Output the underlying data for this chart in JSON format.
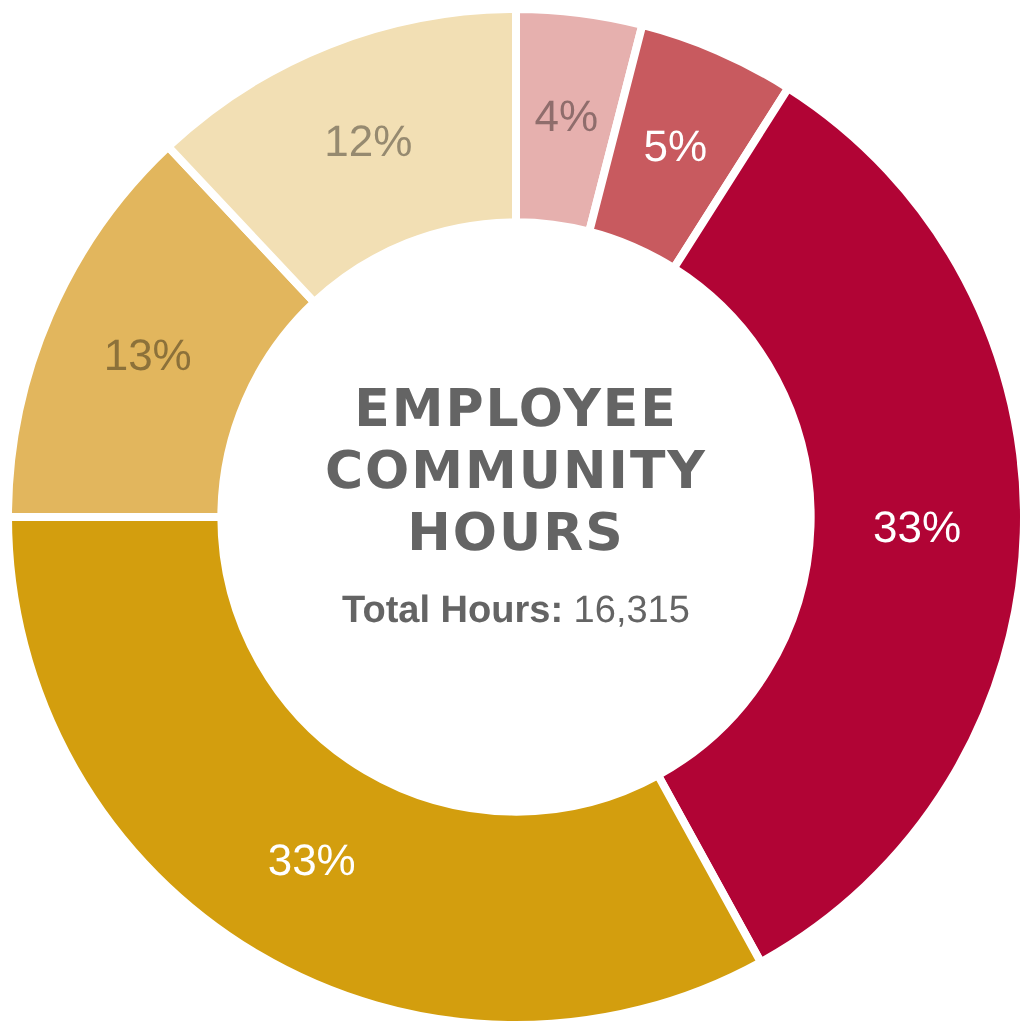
{
  "chart_data": {
    "type": "donut",
    "title": "EMPLOYEE COMMUNITY HOURS",
    "annotations": [
      "Total Hours: 16,315"
    ],
    "categories": [
      null,
      null,
      null,
      null,
      null,
      null
    ],
    "values": [
      4,
      5,
      33,
      33,
      13,
      12
    ],
    "colors": [
      "#e6b0ae",
      "#c85a5f",
      "#b10435",
      "#d39e0e",
      "#e2b65d",
      "#f2dfb4"
    ],
    "value_labels": [
      "4%",
      "5%",
      "33%",
      "33%",
      "13%",
      "12%"
    ],
    "legend": false
  }
}
